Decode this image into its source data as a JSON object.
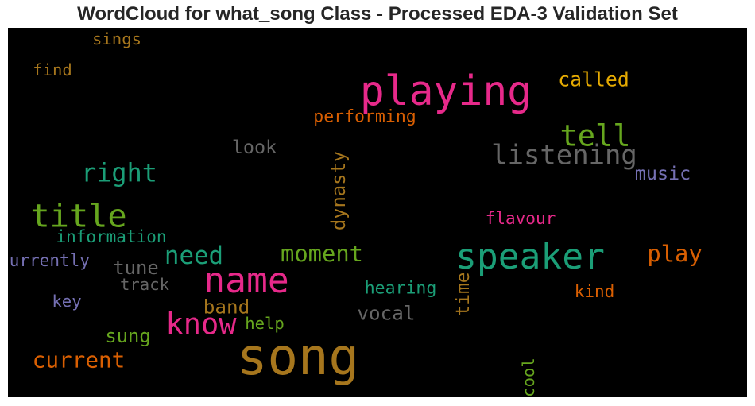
{
  "chart_data": {
    "type": "wordcloud",
    "title": "WordCloud for what_song Class - Processed EDA-3 Validation Set",
    "background": "#000000",
    "words": [
      {
        "text": "song",
        "weight": 1.0,
        "color": "#a6761d"
      },
      {
        "text": "playing",
        "weight": 0.78,
        "color": "#e7298a"
      },
      {
        "text": "speaker",
        "weight": 0.66,
        "color": "#1b9e77"
      },
      {
        "text": "name",
        "weight": 0.66,
        "color": "#e7298a"
      },
      {
        "text": "title",
        "weight": 0.58,
        "color": "#66a61e"
      },
      {
        "text": "tell",
        "weight": 0.52,
        "color": "#66a61e"
      },
      {
        "text": "know",
        "weight": 0.52,
        "color": "#e7298a"
      },
      {
        "text": "listening",
        "weight": 0.46,
        "color": "#666666"
      },
      {
        "text": "right",
        "weight": 0.42,
        "color": "#1b9e77"
      },
      {
        "text": "need",
        "weight": 0.4,
        "color": "#1b9e77"
      },
      {
        "text": "moment",
        "weight": 0.36,
        "color": "#66a61e"
      },
      {
        "text": "play",
        "weight": 0.36,
        "color": "#d95f02"
      },
      {
        "text": "current",
        "weight": 0.34,
        "color": "#d95f02"
      },
      {
        "text": "called",
        "weight": 0.28,
        "color": "#e6ab02"
      },
      {
        "text": "band",
        "weight": 0.27,
        "color": "#a6761d"
      },
      {
        "text": "vocal",
        "weight": 0.27,
        "color": "#666666"
      },
      {
        "text": "tune",
        "weight": 0.26,
        "color": "#666666"
      },
      {
        "text": "sung",
        "weight": 0.26,
        "color": "#66a61e"
      },
      {
        "text": "dynasty",
        "weight": 0.26,
        "color": "#a6761d"
      },
      {
        "text": "look",
        "weight": 0.25,
        "color": "#666666"
      },
      {
        "text": "music",
        "weight": 0.25,
        "color": "#7570b3"
      },
      {
        "text": "time",
        "weight": 0.24,
        "color": "#a6761d"
      },
      {
        "text": "hearing",
        "weight": 0.21,
        "color": "#1b9e77"
      },
      {
        "text": "performing",
        "weight": 0.21,
        "color": "#d95f02"
      },
      {
        "text": "information",
        "weight": 0.2,
        "color": "#1b9e77"
      },
      {
        "text": "currently",
        "weight": 0.2,
        "color": "#7570b3"
      },
      {
        "text": "kind",
        "weight": 0.2,
        "color": "#d95f02"
      },
      {
        "text": "flavour",
        "weight": 0.2,
        "color": "#e7298a"
      },
      {
        "text": "find",
        "weight": 0.19,
        "color": "#a6761d"
      },
      {
        "text": "sings",
        "weight": 0.19,
        "color": "#a6761d"
      },
      {
        "text": "track",
        "weight": 0.19,
        "color": "#666666"
      },
      {
        "text": "key",
        "weight": 0.19,
        "color": "#7570b3"
      },
      {
        "text": "help",
        "weight": 0.19,
        "color": "#66a61e"
      },
      {
        "text": "cool",
        "weight": 0.19,
        "color": "#66a61e"
      }
    ]
  }
}
